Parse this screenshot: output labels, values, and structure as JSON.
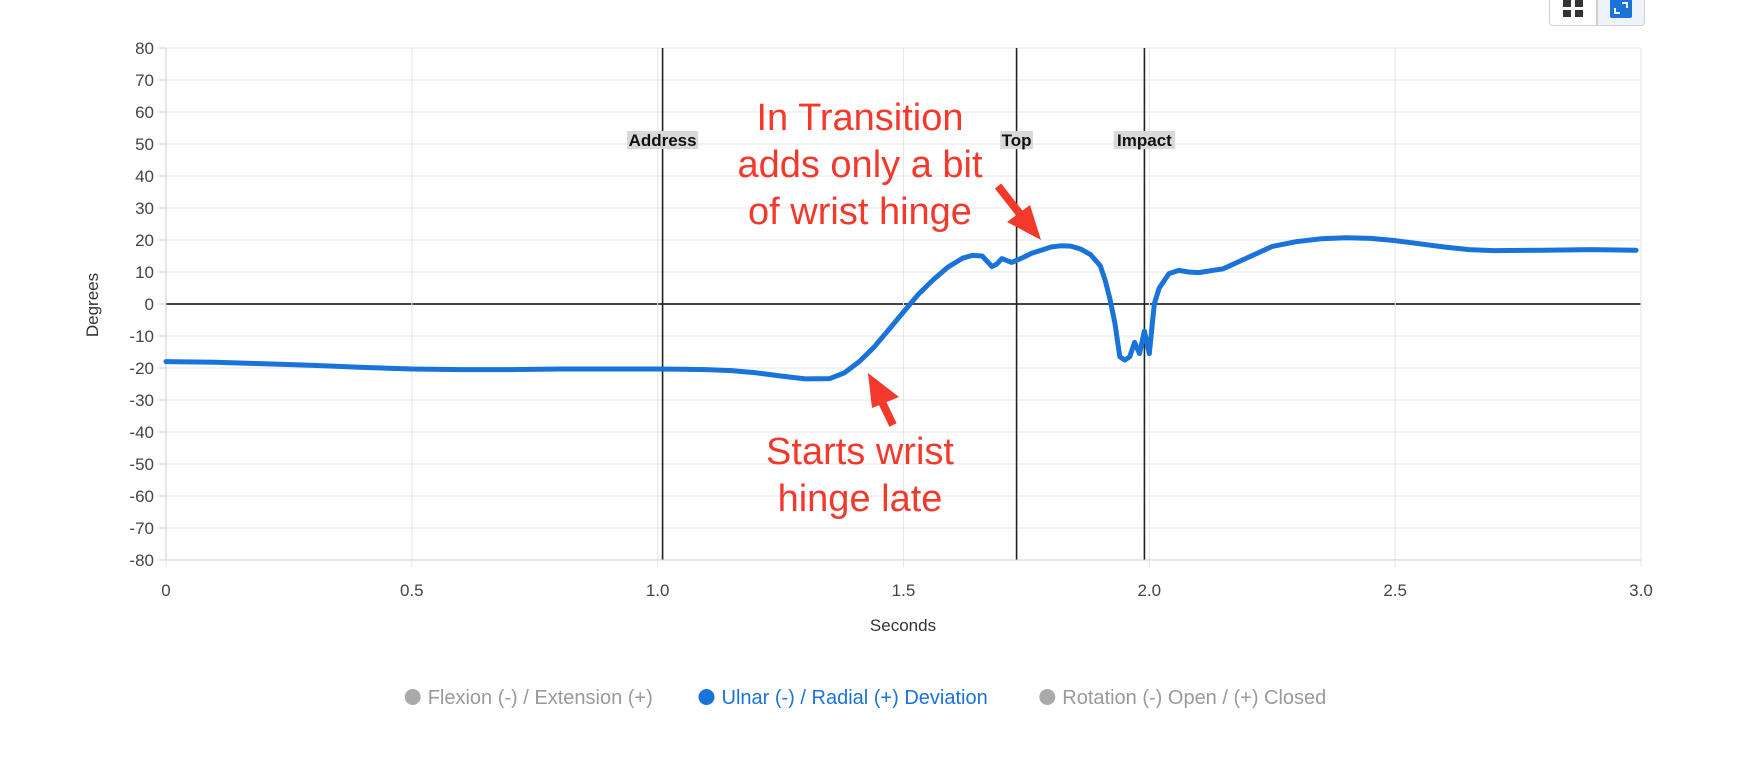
{
  "chart_data": {
    "type": "line",
    "xlabel": "Seconds",
    "ylabel": "Degrees",
    "xlim": [
      0,
      3.0
    ],
    "ylim": [
      -80,
      80
    ],
    "x_ticks": [
      {
        "value": 0,
        "label": "0"
      },
      {
        "value": 0.5,
        "label": "0.5"
      },
      {
        "value": 1.0,
        "label": "1.0"
      },
      {
        "value": 1.5,
        "label": "1.5"
      },
      {
        "value": 2.0,
        "label": "2.0"
      },
      {
        "value": 2.5,
        "label": "2.5"
      },
      {
        "value": 3.0,
        "label": "3.0"
      }
    ],
    "y_ticks": [
      {
        "value": 80,
        "label": "80"
      },
      {
        "value": 70,
        "label": "70"
      },
      {
        "value": 60,
        "label": "60"
      },
      {
        "value": 50,
        "label": "50"
      },
      {
        "value": 40,
        "label": "40"
      },
      {
        "value": 30,
        "label": "30"
      },
      {
        "value": 20,
        "label": "20"
      },
      {
        "value": 10,
        "label": "10"
      },
      {
        "value": 0,
        "label": "0"
      },
      {
        "value": -10,
        "label": "-10"
      },
      {
        "value": -20,
        "label": "-20"
      },
      {
        "value": -30,
        "label": "-30"
      },
      {
        "value": -40,
        "label": "-40"
      },
      {
        "value": -50,
        "label": "-50"
      },
      {
        "value": -60,
        "label": "-60"
      },
      {
        "value": -70,
        "label": "-70"
      },
      {
        "value": -80,
        "label": "-80"
      }
    ],
    "grid": true,
    "events": [
      {
        "label": "Address",
        "x": 1.01
      },
      {
        "label": "Top",
        "x": 1.73
      },
      {
        "label": "Impact",
        "x": 1.99
      }
    ],
    "series": [
      {
        "name": "Ulnar (-) / Radial (+) Deviation",
        "color": "#1a73d9",
        "active": true,
        "x": [
          0,
          0.1,
          0.2,
          0.3,
          0.4,
          0.5,
          0.6,
          0.7,
          0.8,
          0.9,
          1.0,
          1.05,
          1.1,
          1.15,
          1.2,
          1.25,
          1.3,
          1.35,
          1.38,
          1.41,
          1.44,
          1.47,
          1.5,
          1.53,
          1.56,
          1.59,
          1.62,
          1.64,
          1.66,
          1.68,
          1.69,
          1.7,
          1.72,
          1.74,
          1.76,
          1.78,
          1.8,
          1.82,
          1.84,
          1.86,
          1.88,
          1.9,
          1.91,
          1.92,
          1.93,
          1.94,
          1.95,
          1.96,
          1.97,
          1.98,
          1.99,
          2.0,
          2.01,
          2.02,
          2.04,
          2.06,
          2.08,
          2.1,
          2.15,
          2.2,
          2.25,
          2.3,
          2.35,
          2.4,
          2.45,
          2.5,
          2.55,
          2.6,
          2.65,
          2.7,
          2.8,
          2.9,
          2.99
        ],
        "y": [
          -18,
          -18.2,
          -18.7,
          -19.2,
          -19.8,
          -20.3,
          -20.5,
          -20.5,
          -20.3,
          -20.3,
          -20.3,
          -20.4,
          -20.5,
          -20.8,
          -21.5,
          -22.5,
          -23.4,
          -23.3,
          -21.5,
          -18,
          -13.5,
          -8,
          -2.5,
          3,
          7.5,
          11.5,
          14.3,
          15.2,
          15,
          11.7,
          12.5,
          14.2,
          13,
          14.3,
          15.8,
          16.8,
          17.8,
          18.2,
          18.1,
          17.2,
          15.5,
          12,
          7.5,
          1.5,
          -6,
          -16.5,
          -17.5,
          -16.5,
          -12,
          -15.5,
          -8.5,
          -15.5,
          0,
          5,
          9.5,
          10.5,
          10,
          9.8,
          11,
          14.5,
          18,
          19.5,
          20.4,
          20.7,
          20.5,
          19.8,
          18.8,
          17.8,
          17,
          16.7,
          16.8,
          17,
          16.8
        ]
      }
    ],
    "legend": [
      {
        "label": "Flexion (-) / Extension (+)",
        "color": "#aaaaaa",
        "active": false
      },
      {
        "label": "Ulnar (-) / Radial (+) Deviation",
        "color": "#1a73d9",
        "active": true
      },
      {
        "label": "Rotation (-) Open / (+) Closed",
        "color": "#aaaaaa",
        "active": false
      }
    ],
    "legend_position": "bottom",
    "annotations": [
      {
        "text": "In Transition adds only a bit of wrist hinge",
        "lines": [
          "In Transition",
          "adds only a bit",
          "of wrist hinge"
        ],
        "color": "#f2392c"
      },
      {
        "text": "Starts wrist hinge late",
        "lines": [
          "Starts wrist",
          "hinge late"
        ],
        "color": "#f2392c"
      }
    ]
  },
  "toolbar": {
    "grid_view_icon": "grid-view-icon",
    "expand_icon": "expand-icon",
    "accent": "#1a73d9"
  }
}
